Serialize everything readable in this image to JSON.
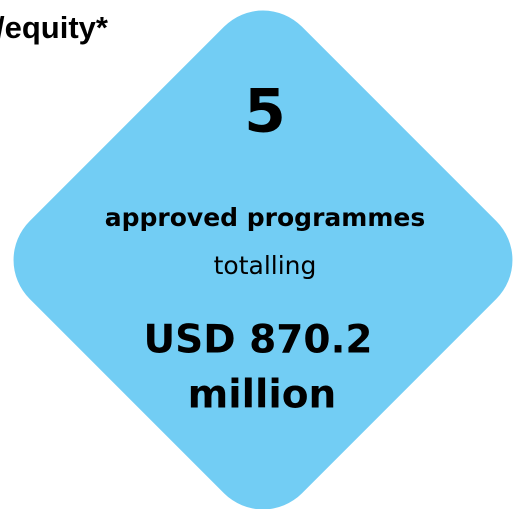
{
  "header": {
    "title": "/equity*"
  },
  "stat": {
    "number": "5",
    "label": "approved programmes",
    "connector": "totalling",
    "amount": [
      "USD 870.2",
      "million"
    ]
  }
}
